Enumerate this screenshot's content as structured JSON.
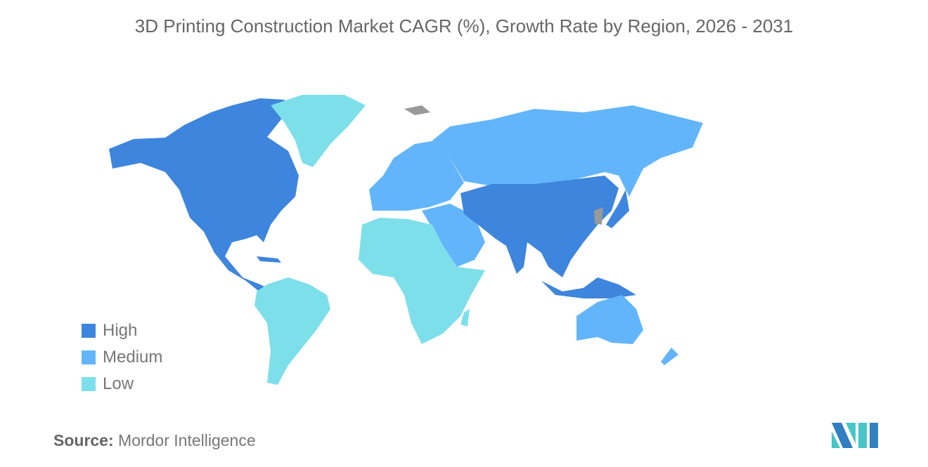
{
  "title": "3D Printing Construction Market CAGR (%), Growth Rate by Region, 2026 - 2031",
  "legend": [
    {
      "label": "High",
      "color": "#3d85dd"
    },
    {
      "label": "Medium",
      "color": "#63b5fb"
    },
    {
      "label": "Low",
      "color": "#7ddfea"
    }
  ],
  "regions": {
    "north_america": "High",
    "asia_pacific_core": "High",
    "europe": "Medium",
    "russia": "Medium",
    "middle_east": "Medium",
    "australia": "Medium",
    "south_america": "Low",
    "africa": "Low",
    "greenland": "Low"
  },
  "no_data_color": "#999999",
  "source": {
    "label": "Source:",
    "value": "Mordor Intelligence"
  }
}
